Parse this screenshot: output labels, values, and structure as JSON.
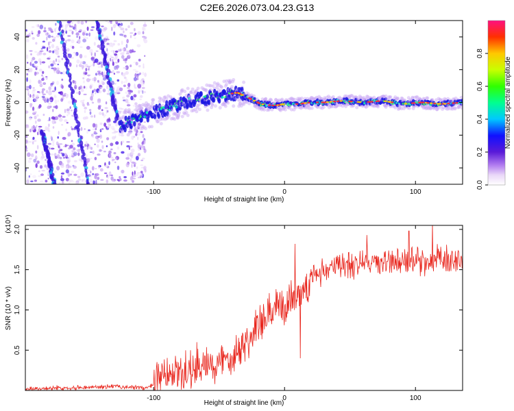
{
  "title": "C2E6.2026.073.04.23.G13",
  "chart_data": [
    {
      "type": "heatmap",
      "xlabel": "Height of straight line (km)",
      "ylabel": "Frequency (Hz)",
      "xlim": [
        -198,
        136
      ],
      "ylim": [
        -50,
        50
      ],
      "xticks": [
        -100,
        0,
        100
      ],
      "yticks": [
        -40,
        -20,
        0,
        20,
        40
      ],
      "colorbar": {
        "label": "Normalized spectral amplitude",
        "range": [
          0,
          1
        ],
        "ticks": [
          "0.0",
          "0.2",
          "0.4",
          "0.6",
          "0.8"
        ]
      },
      "ridge": [
        {
          "x": -124,
          "y": -14
        },
        {
          "x": -110,
          "y": -9
        },
        {
          "x": -95,
          "y": -5
        },
        {
          "x": -80,
          "y": -1
        },
        {
          "x": -65,
          "y": 2
        },
        {
          "x": -50,
          "y": 4
        },
        {
          "x": -36,
          "y": 6
        },
        {
          "x": -28,
          "y": 3
        },
        {
          "x": -18,
          "y": -1
        },
        {
          "x": -8,
          "y": -2
        },
        {
          "x": 0,
          "y": -1
        },
        {
          "x": 10,
          "y": -1
        },
        {
          "x": 20,
          "y": 0
        },
        {
          "x": 30,
          "y": 0
        },
        {
          "x": 45,
          "y": 1
        },
        {
          "x": 60,
          "y": 0
        },
        {
          "x": 75,
          "y": 1
        },
        {
          "x": 90,
          "y": -1
        },
        {
          "x": 105,
          "y": 0
        },
        {
          "x": 120,
          "y": -1
        },
        {
          "x": 136,
          "y": 0
        }
      ]
    },
    {
      "type": "line",
      "xlabel": "Height of straight line (km)",
      "ylabel": "SNR (10 * v/v)",
      "yscale_label": "(x10⁴)",
      "xlim": [
        -198,
        136
      ],
      "ylim": [
        0,
        2.05
      ],
      "xticks": [
        -100,
        0,
        100
      ],
      "yticks": [
        "0.5",
        "1.0",
        "1.5",
        "2.0"
      ],
      "series_color": "#e8231a",
      "envelope": [
        {
          "x": -198,
          "y": 0.02
        },
        {
          "x": -150,
          "y": 0.04
        },
        {
          "x": -130,
          "y": 0.05
        },
        {
          "x": -105,
          "y": 0.03
        },
        {
          "x": -95,
          "y": 0.12
        },
        {
          "x": -85,
          "y": 0.2
        },
        {
          "x": -70,
          "y": 0.25
        },
        {
          "x": -55,
          "y": 0.3
        },
        {
          "x": -42,
          "y": 0.42
        },
        {
          "x": -30,
          "y": 0.6
        },
        {
          "x": -20,
          "y": 0.78
        },
        {
          "x": -10,
          "y": 0.95
        },
        {
          "x": 0,
          "y": 1.05
        },
        {
          "x": 12,
          "y": 1.25
        },
        {
          "x": 25,
          "y": 1.45
        },
        {
          "x": 40,
          "y": 1.55
        },
        {
          "x": 60,
          "y": 1.58
        },
        {
          "x": 80,
          "y": 1.6
        },
        {
          "x": 100,
          "y": 1.6
        },
        {
          "x": 120,
          "y": 1.62
        },
        {
          "x": 136,
          "y": 1.62
        }
      ],
      "spikes": [
        {
          "x": 8,
          "y": 1.82
        },
        {
          "x": 12,
          "y": 0.4
        },
        {
          "x": -22,
          "y": 1.0
        },
        {
          "x": 113,
          "y": 2.08
        },
        {
          "x": 95,
          "y": 1.98
        },
        {
          "x": 63,
          "y": 1.93
        },
        {
          "x": -67,
          "y": 0.6
        }
      ]
    }
  ]
}
